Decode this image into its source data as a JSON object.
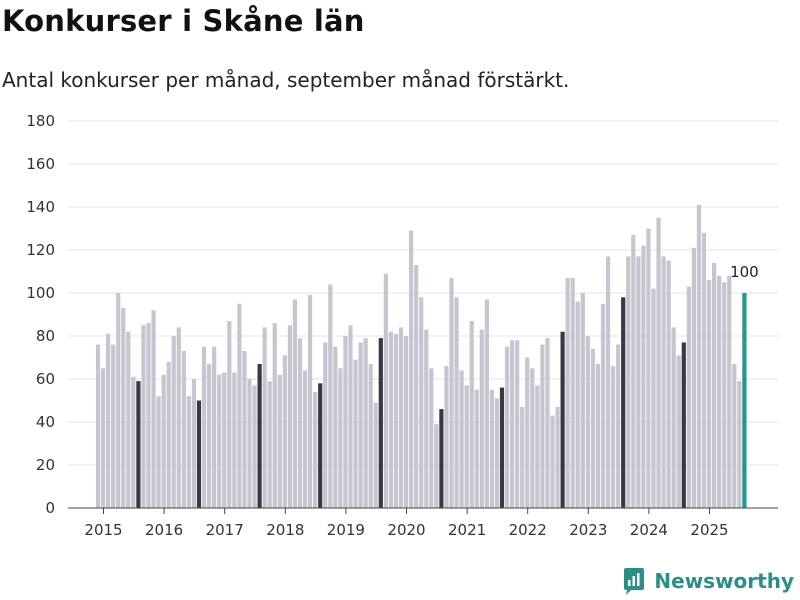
{
  "header": {
    "title": "Konkurser i Skåne län",
    "subtitle": "Antal konkurser per månad, september månad förstärkt."
  },
  "brand": {
    "name": "Newsworthy",
    "logo_icon": "newsworthy-logo-icon"
  },
  "colors": {
    "bar": "#c7c6d0",
    "highlight": "#3a3845",
    "latest": "#1f9a8e",
    "grid": "#e3e3e3",
    "axis": "#444444",
    "brand": "#2c8f87"
  },
  "chart_data": {
    "type": "bar",
    "title": "Konkurser i Skåne län",
    "subtitle": "Antal konkurser per månad, september månad förstärkt.",
    "xlabel": "",
    "ylabel": "",
    "ylim": [
      0,
      180
    ],
    "yticks": [
      0,
      20,
      40,
      60,
      80,
      100,
      120,
      140,
      160,
      180
    ],
    "xticks": [
      "2015",
      "2016",
      "2017",
      "2018",
      "2019",
      "2020",
      "2021",
      "2022",
      "2023",
      "2024",
      "2025"
    ],
    "grid": true,
    "start": "2015-01",
    "highlight_month": "september",
    "latest_label": "100",
    "years": [
      {
        "year": "2015",
        "values": [
          76,
          65,
          81,
          76,
          100,
          93,
          82,
          61,
          59,
          85,
          86,
          92
        ]
      },
      {
        "year": "2016",
        "values": [
          52,
          62,
          68,
          80,
          84,
          73,
          52,
          60,
          50,
          75,
          67,
          75
        ]
      },
      {
        "year": "2017",
        "values": [
          62,
          63,
          87,
          63,
          95,
          73,
          60,
          57,
          67,
          84,
          59,
          86
        ]
      },
      {
        "year": "2018",
        "values": [
          62,
          71,
          85,
          97,
          79,
          64,
          99,
          54,
          58,
          77,
          104,
          75
        ]
      },
      {
        "year": "2019",
        "values": [
          65,
          80,
          85,
          69,
          77,
          79,
          67,
          49,
          79,
          109,
          82,
          81
        ]
      },
      {
        "year": "2020",
        "values": [
          84,
          80,
          129,
          113,
          98,
          83,
          65,
          39,
          46,
          66,
          107,
          98
        ]
      },
      {
        "year": "2021",
        "values": [
          64,
          57,
          87,
          55,
          83,
          97,
          55,
          51,
          56,
          75,
          78,
          78
        ]
      },
      {
        "year": "2022",
        "values": [
          47,
          70,
          65,
          57,
          76,
          79,
          43,
          47,
          82,
          107,
          107,
          96
        ]
      },
      {
        "year": "2023",
        "values": [
          100,
          80,
          74,
          67,
          95,
          117,
          66,
          76,
          98,
          117,
          127,
          117
        ]
      },
      {
        "year": "2024",
        "values": [
          122,
          130,
          102,
          135,
          117,
          115,
          84,
          71,
          77,
          103,
          121,
          141
        ]
      },
      {
        "year": "2025",
        "values": [
          128,
          106,
          114,
          108,
          105,
          108,
          67,
          59,
          100
        ]
      }
    ]
  }
}
